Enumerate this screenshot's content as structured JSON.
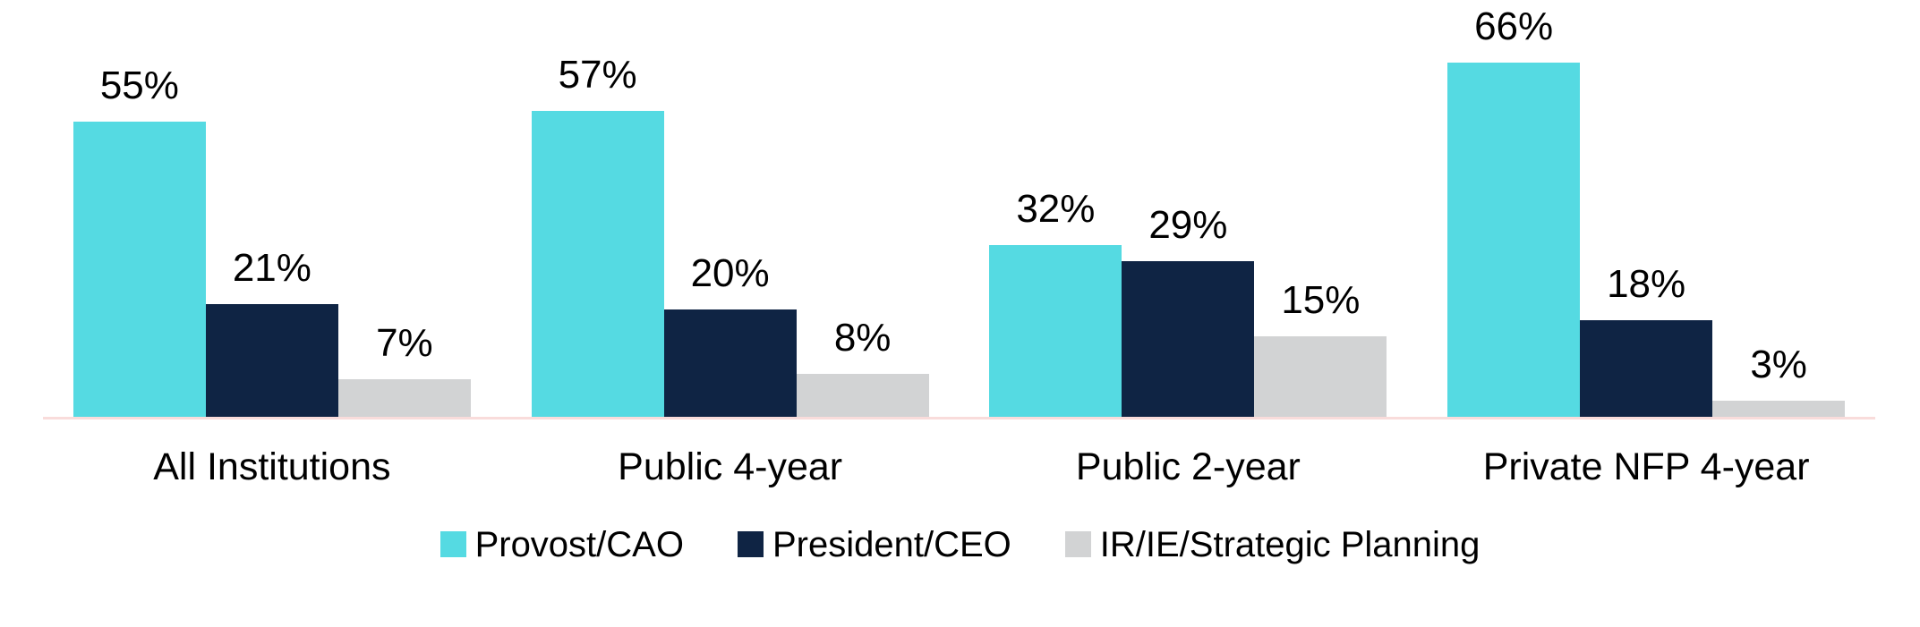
{
  "chart_data": {
    "type": "bar",
    "categories": [
      "All Institutions",
      "Public 4-year",
      "Public 2-year",
      "Private NFP 4-year"
    ],
    "series": [
      {
        "name": "Provost/CAO",
        "color": "#55DAE2",
        "values": [
          55,
          57,
          32,
          66
        ],
        "labels": [
          "55%",
          "57%",
          "32%",
          "66%"
        ]
      },
      {
        "name": "President/CEO",
        "color": "#0F2444",
        "values": [
          21,
          20,
          29,
          18
        ],
        "labels": [
          "21%",
          "20%",
          "29%",
          "18%"
        ]
      },
      {
        "name": "IR/IE/Strategic Planning",
        "color": "#D2D3D4",
        "values": [
          7,
          8,
          15,
          3
        ],
        "labels": [
          "7%",
          "8%",
          "15%",
          "3%"
        ]
      }
    ],
    "title": "",
    "xlabel": "",
    "ylabel": "",
    "grid": false,
    "legend_position": "bottom",
    "axis_line_color": "#F9DCDB",
    "data_label_color": "#000000"
  }
}
